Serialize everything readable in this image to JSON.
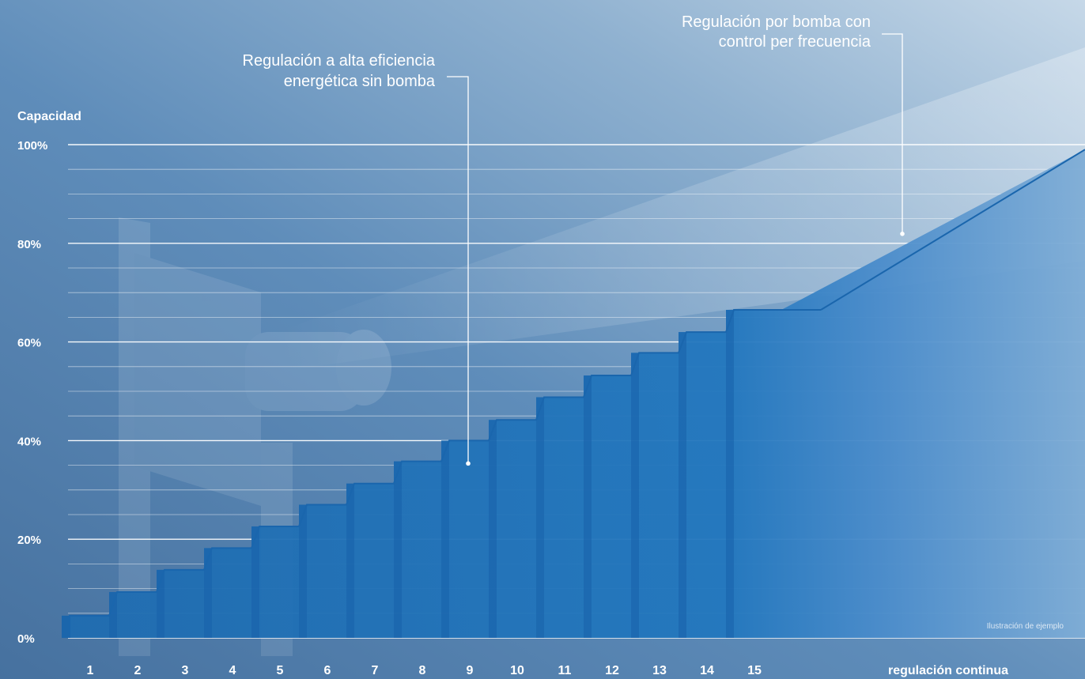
{
  "chart_data": {
    "type": "area",
    "ylabel": "Capacidad",
    "xlabel": "regulación continua",
    "ylim": [
      0,
      100
    ],
    "y_ticks": [
      "0%",
      "20%",
      "40%",
      "60%",
      "80%",
      "100%"
    ],
    "y_tick_values": [
      0,
      20,
      40,
      60,
      80,
      100
    ],
    "minor_grid_step": 5,
    "categories": [
      "1",
      "2",
      "3",
      "4",
      "5",
      "6",
      "7",
      "8",
      "9",
      "10",
      "11",
      "12",
      "13",
      "14",
      "15"
    ],
    "series": [
      {
        "name": "Regulación a alta eficiencia energética sin bomba",
        "style": "steps",
        "values": [
          4.5,
          9.3,
          13.8,
          18.2,
          22.6,
          27.0,
          31.3,
          35.8,
          40.0,
          44.2,
          48.8,
          53.2,
          57.8,
          62.0,
          66.5
        ]
      },
      {
        "name": "Regulación por bomba con control per frecuencia",
        "style": "continuous",
        "x": [
          "15",
          "regulación continua"
        ],
        "values": [
          66.5,
          99.0
        ]
      }
    ],
    "annotations": [
      {
        "lines": [
          "Regulación a alta eficiencia",
          "energética sin bomba"
        ],
        "target_category": "9",
        "target_value": 36
      },
      {
        "lines": [
          "Regulación por bomba con",
          "control per frecuencia"
        ],
        "target_value": 80
      }
    ],
    "footnote": "Ilustración de ejemplo",
    "colors": {
      "bg_left": "#4a78a8",
      "bg_light": "#c4d7e8",
      "area": "#1f6fb3",
      "step_line": "#1761a9",
      "area_right": "#6a9fd0",
      "gridline": "#ffffff",
      "text": "#ffffff"
    }
  }
}
